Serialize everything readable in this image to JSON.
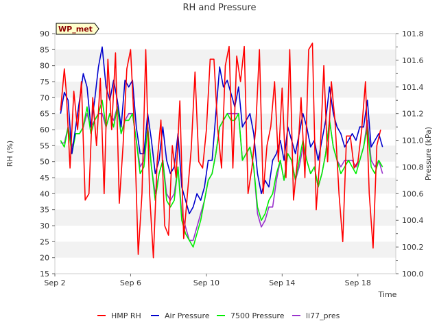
{
  "chart_data": {
    "type": "line",
    "title": "RH and Pressure",
    "badge": "WP_met",
    "xlabel": "Time",
    "ylabel_left": "RH (%)",
    "ylabel_right": "Pressure (kPa)",
    "x_ticks": [
      "Sep 2",
      "Sep 6",
      "Sep 10",
      "Sep 14",
      "Sep 18"
    ],
    "x_tick_days": [
      2,
      6,
      10,
      14,
      18
    ],
    "xlim_days": [
      2,
      20.0
    ],
    "y_left_ticks": [
      15,
      20,
      25,
      30,
      35,
      40,
      45,
      50,
      55,
      60,
      65,
      70,
      75,
      80,
      85,
      90
    ],
    "ylim_left": [
      15,
      90
    ],
    "y_right_ticks": [
      "100.0",
      "100.2",
      "100.4",
      "100.6",
      "100.8",
      "101.0",
      "101.2",
      "101.4",
      "101.6",
      "101.8"
    ],
    "ylim_right": [
      100.0,
      101.8
    ],
    "grid": "horizontal bands",
    "legend_position": "bottom",
    "series": [
      {
        "name": "HMP RH",
        "axis": "left",
        "color": "#ff0000",
        "x": [
          2.3,
          2.5,
          2.6,
          2.8,
          3.0,
          3.2,
          3.4,
          3.6,
          3.8,
          4.0,
          4.2,
          4.4,
          4.6,
          4.8,
          5.0,
          5.2,
          5.4,
          5.6,
          5.8,
          6.0,
          6.2,
          6.4,
          6.6,
          6.8,
          7.0,
          7.2,
          7.4,
          7.6,
          7.8,
          8.0,
          8.2,
          8.4,
          8.6,
          8.8,
          9.0,
          9.2,
          9.4,
          9.6,
          9.8,
          10.0,
          10.2,
          10.4,
          10.6,
          10.8,
          11.0,
          11.2,
          11.4,
          11.6,
          11.8,
          12.0,
          12.2,
          12.4,
          12.6,
          12.8,
          13.0,
          13.2,
          13.4,
          13.6,
          13.8,
          14.0,
          14.2,
          14.4,
          14.6,
          14.8,
          15.0,
          15.2,
          15.4,
          15.6,
          15.8,
          16.0,
          16.2,
          16.4,
          16.6,
          16.8,
          17.0,
          17.2,
          17.4,
          17.6,
          17.8,
          18.0,
          18.2,
          18.4,
          18.6,
          18.8,
          19.0,
          19.2
        ],
        "y": [
          66,
          79,
          72,
          48,
          72,
          60,
          75,
          38,
          40,
          70,
          55,
          76,
          40,
          82,
          60,
          84,
          37,
          55,
          79,
          85,
          60,
          21,
          40,
          85,
          40,
          20,
          50,
          63,
          30,
          27,
          55,
          45,
          69,
          26,
          40,
          54,
          78,
          50,
          48,
          60,
          82,
          82,
          60,
          48,
          80,
          86,
          48,
          83,
          75,
          86,
          40,
          48,
          60,
          85,
          40,
          55,
          61,
          75,
          50,
          73,
          45,
          85,
          38,
          50,
          70,
          45,
          85,
          87,
          35,
          52,
          80,
          50,
          75,
          62,
          40,
          25,
          58,
          58,
          48,
          50,
          60,
          75,
          40,
          23,
          55,
          60
        ]
      },
      {
        "name": "Air Pressure",
        "axis": "right",
        "color": "#0000cc",
        "x": [
          2.3,
          2.5,
          2.7,
          2.9,
          3.1,
          3.3,
          3.5,
          3.7,
          3.9,
          4.1,
          4.3,
          4.5,
          4.7,
          4.9,
          5.1,
          5.3,
          5.5,
          5.7,
          5.9,
          6.1,
          6.3,
          6.5,
          6.7,
          6.9,
          7.1,
          7.3,
          7.5,
          7.7,
          7.9,
          8.1,
          8.3,
          8.5,
          8.7,
          8.9,
          9.1,
          9.3,
          9.5,
          9.7,
          9.9,
          10.1,
          10.3,
          10.5,
          10.7,
          10.9,
          11.1,
          11.3,
          11.5,
          11.7,
          11.9,
          12.1,
          12.3,
          12.5,
          12.7,
          12.9,
          13.1,
          13.3,
          13.5,
          13.7,
          13.9,
          14.1,
          14.3,
          14.5,
          14.7,
          14.9,
          15.1,
          15.3,
          15.5,
          15.7,
          15.9,
          16.1,
          16.3,
          16.5,
          16.7,
          16.9,
          17.1,
          17.3,
          17.5,
          17.7,
          17.9,
          18.1,
          18.3,
          18.5,
          18.7,
          18.9,
          19.1,
          19.3
        ],
        "y": [
          101.2,
          101.36,
          101.3,
          100.9,
          101.1,
          101.3,
          101.5,
          101.4,
          101.1,
          101.3,
          101.55,
          101.7,
          101.4,
          101.3,
          101.45,
          101.3,
          101.1,
          101.45,
          101.4,
          101.45,
          101.1,
          100.9,
          100.9,
          101.2,
          101.0,
          100.75,
          100.85,
          101.1,
          100.85,
          100.75,
          100.8,
          101.05,
          100.65,
          100.55,
          100.45,
          100.5,
          100.6,
          100.55,
          100.65,
          100.85,
          100.85,
          101.2,
          101.55,
          101.4,
          101.45,
          101.35,
          101.25,
          101.4,
          101.1,
          101.15,
          101.2,
          101.05,
          100.75,
          100.6,
          100.7,
          100.65,
          100.85,
          100.9,
          101.0,
          100.85,
          101.1,
          101.0,
          100.9,
          101.05,
          101.2,
          101.1,
          100.95,
          101.0,
          100.85,
          101.0,
          101.15,
          101.4,
          101.2,
          101.1,
          101.05,
          100.95,
          101.0,
          101.05,
          101.0,
          101.1,
          101.1,
          101.3,
          100.95,
          101.0,
          101.05,
          100.95
        ]
      },
      {
        "name": "7500 Pressure",
        "axis": "right",
        "color": "#00ee00",
        "x": [
          2.3,
          2.5,
          2.7,
          2.9,
          3.1,
          3.3,
          3.5,
          3.7,
          3.9,
          4.1,
          4.3,
          4.5,
          4.7,
          4.9,
          5.1,
          5.3,
          5.5,
          5.7,
          5.9,
          6.1,
          6.3,
          6.5,
          6.7,
          6.9,
          7.1,
          7.3,
          7.5,
          7.7,
          7.9,
          8.1,
          8.3,
          8.5,
          8.7,
          8.9,
          9.1,
          9.3,
          9.5,
          9.7,
          9.9,
          10.1,
          10.3,
          10.5,
          10.7,
          10.9,
          11.1,
          11.3,
          11.5,
          11.7,
          11.9,
          12.1,
          12.3,
          12.5,
          12.7,
          12.9,
          13.1,
          13.3,
          13.5,
          13.7,
          13.9,
          14.1,
          14.3,
          14.5,
          14.7,
          14.9,
          15.1,
          15.3,
          15.5,
          15.7,
          15.9,
          16.1,
          16.3,
          16.5,
          16.7,
          16.9,
          17.1,
          17.3,
          17.5,
          17.7,
          17.9,
          18.1,
          18.3,
          18.5,
          18.7,
          18.9,
          19.1,
          19.3
        ],
        "y": [
          101.0,
          100.95,
          101.1,
          100.9,
          101.05,
          101.05,
          101.1,
          101.25,
          101.05,
          101.15,
          101.2,
          101.3,
          101.1,
          101.2,
          101.1,
          101.25,
          101.05,
          101.15,
          101.15,
          101.2,
          101.0,
          100.75,
          100.8,
          101.1,
          100.8,
          100.55,
          100.75,
          100.85,
          100.55,
          100.5,
          100.55,
          100.8,
          100.4,
          100.3,
          100.25,
          100.2,
          100.3,
          100.4,
          100.55,
          100.7,
          100.75,
          100.9,
          101.1,
          101.15,
          101.2,
          101.15,
          101.15,
          101.2,
          100.85,
          100.9,
          100.95,
          100.8,
          100.5,
          100.4,
          100.45,
          100.55,
          100.6,
          100.75,
          100.85,
          100.7,
          100.9,
          100.85,
          100.7,
          100.85,
          101.0,
          100.85,
          100.75,
          100.8,
          100.65,
          100.75,
          100.9,
          101.15,
          100.95,
          100.85,
          100.75,
          100.8,
          100.85,
          100.8,
          100.75,
          100.85,
          100.95,
          101.1,
          100.8,
          100.75,
          100.85,
          100.8
        ]
      },
      {
        "name": "li77_pres",
        "axis": "right",
        "color": "#9933cc",
        "x": [
          2.3,
          2.5,
          2.7,
          2.9,
          3.1,
          3.3,
          3.5,
          3.7,
          3.9,
          4.1,
          4.3,
          4.5,
          4.7,
          4.9,
          5.1,
          5.3,
          5.5,
          5.7,
          5.9,
          6.1,
          6.3,
          6.5,
          6.7,
          6.9,
          7.1,
          7.3,
          7.5,
          7.7,
          7.9,
          8.1,
          8.3,
          8.5,
          8.7,
          8.9,
          9.1,
          9.3,
          9.5,
          9.7,
          9.9,
          10.1,
          10.3,
          10.5,
          10.7,
          10.9,
          11.1,
          11.3,
          11.5,
          11.7,
          11.9,
          12.1,
          12.3,
          12.5,
          12.7,
          12.9,
          13.1,
          13.3,
          13.5,
          13.7,
          13.9,
          14.1,
          14.3,
          14.5,
          14.7,
          14.9,
          15.1,
          15.3,
          15.5,
          15.7,
          15.9,
          16.1,
          16.3,
          16.5,
          16.7,
          16.9,
          17.1,
          17.3,
          17.5,
          17.7,
          17.9,
          18.1,
          18.3,
          18.5,
          18.7,
          18.9,
          19.1,
          19.3
        ],
        "y": [
          100.98,
          100.98,
          101.1,
          100.95,
          101.05,
          101.05,
          101.1,
          101.2,
          101.1,
          101.15,
          101.2,
          101.2,
          101.1,
          101.2,
          101.15,
          101.25,
          101.05,
          101.15,
          101.2,
          101.2,
          101.0,
          100.8,
          100.85,
          101.1,
          100.8,
          100.6,
          100.75,
          100.85,
          100.6,
          100.55,
          100.6,
          100.8,
          100.45,
          100.35,
          100.25,
          100.25,
          100.35,
          100.45,
          100.55,
          100.7,
          100.75,
          100.9,
          101.1,
          101.15,
          101.2,
          101.2,
          101.2,
          101.2,
          100.85,
          100.9,
          100.95,
          100.8,
          100.45,
          100.35,
          100.4,
          100.5,
          100.5,
          100.7,
          100.85,
          100.7,
          100.9,
          100.85,
          100.7,
          100.8,
          100.95,
          100.85,
          100.75,
          100.8,
          100.65,
          100.75,
          100.9,
          101.15,
          100.95,
          100.85,
          100.8,
          100.85,
          100.85,
          100.85,
          100.8,
          100.85,
          100.95,
          101.15,
          100.85,
          100.8,
          100.85,
          100.75
        ]
      }
    ]
  }
}
